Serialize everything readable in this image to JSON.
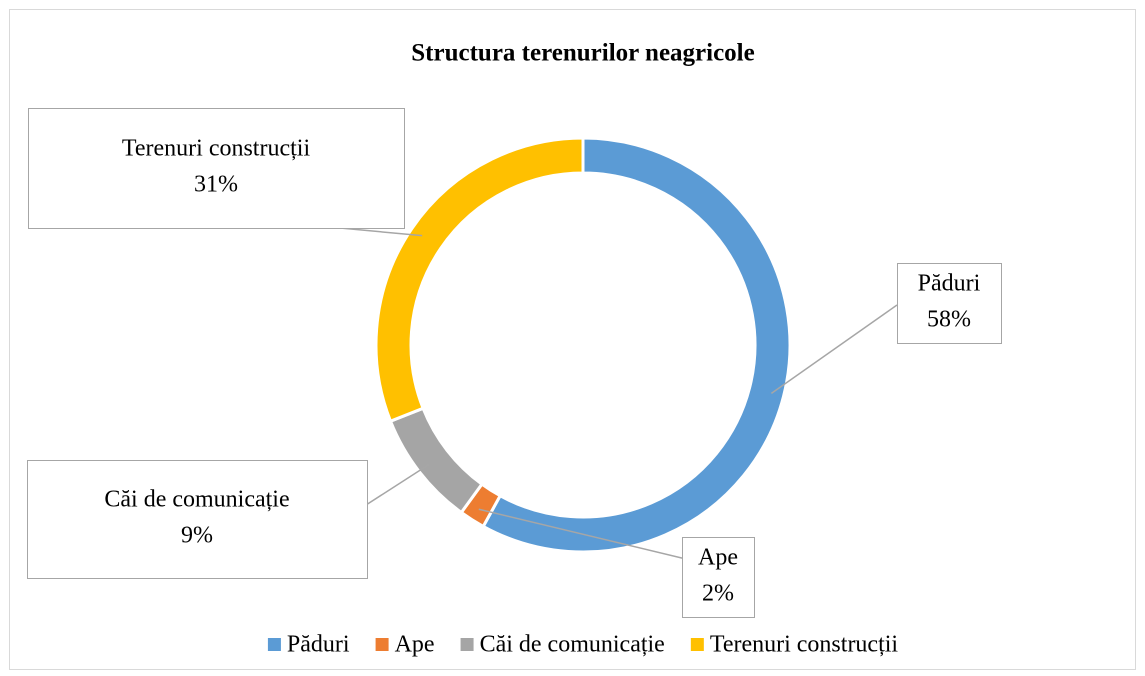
{
  "chart_data": {
    "type": "donut",
    "title": "Structura terenurilor neagricole",
    "categories": [
      "Păduri",
      "Ape",
      "Căi de comunicație",
      "Terenuri construcții"
    ],
    "values": [
      58,
      2,
      9,
      31
    ],
    "value_labels": [
      "58%",
      "2%",
      "9%",
      "31%"
    ],
    "colors": [
      "#5b9bd5",
      "#ed7d31",
      "#a5a5a5",
      "#ffc000"
    ],
    "legend": "bottom"
  }
}
